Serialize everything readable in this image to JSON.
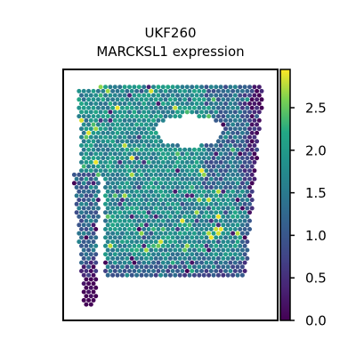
{
  "chart_data": {
    "type": "scatter",
    "subtype": "spatial-hexbin",
    "title_lines": [
      "UKF260",
      "MARCKSL1 expression"
    ],
    "xlabel": "",
    "ylabel": "",
    "colorbar": {
      "colormap": "viridis",
      "range": [
        0.0,
        2.95
      ],
      "ticks": [
        0.0,
        0.5,
        1.0,
        1.5,
        2.0,
        2.5
      ],
      "tick_labels": [
        "0.0",
        "0.5",
        "1.0",
        "1.5",
        "2.0",
        "2.5"
      ]
    },
    "spots": {
      "description": "Spatial transcriptomics spots colored by expression level; values shown only by color.",
      "typical_value": 1.8,
      "low_regions": "right edge and upper-right area, bottom edge, narrow left strip",
      "gap": "white hole in upper-right area"
    },
    "axes_visible": false,
    "grid": false
  }
}
